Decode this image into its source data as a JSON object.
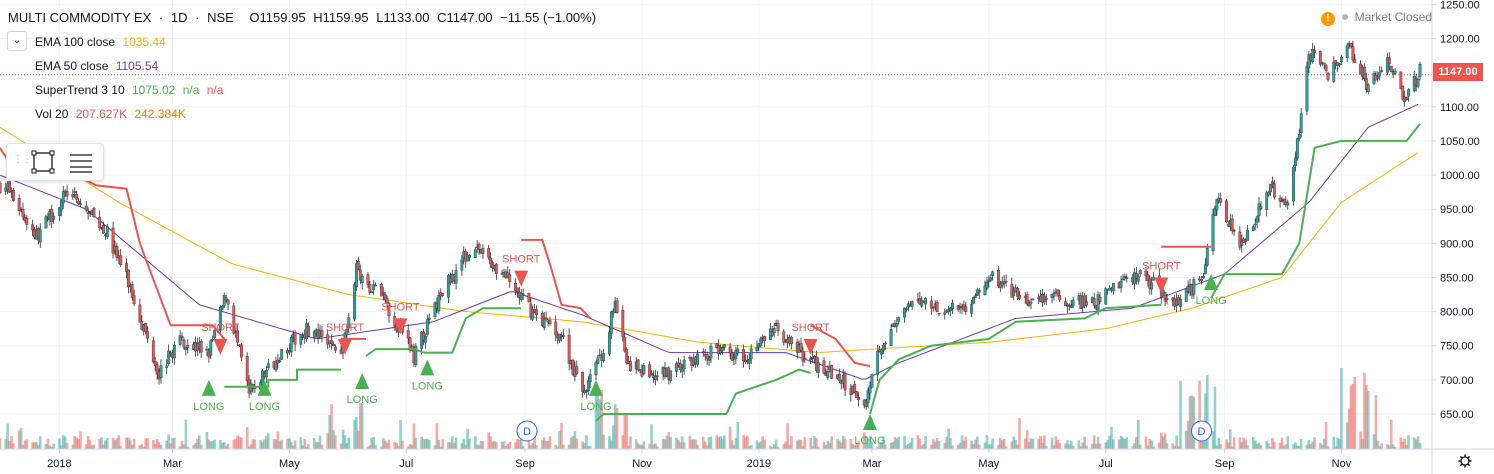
{
  "symbol": {
    "name": "MULTI COMMODITY EX",
    "interval": "1D",
    "exchange": "NSE",
    "open": "O1159.95",
    "high": "H1159.95",
    "low": "L1133.00",
    "close": "C1147.00",
    "change": "−11.55 (−1.00%)"
  },
  "indicators": [
    {
      "label": "EMA 100 close",
      "values": [
        "1035.44"
      ],
      "color": "#f4b400"
    },
    {
      "label": "EMA 50 close",
      "values": [
        "1105.54"
      ],
      "color": "#673ab7"
    },
    {
      "label": "SuperTrend 3 10",
      "values": [
        "1075.02",
        "n/a",
        "n/a"
      ],
      "colors": [
        "#4caf50",
        "#4caf50",
        "#ef5350"
      ]
    },
    {
      "label": "Vol 20",
      "values": [
        "207.627K",
        "242.384K"
      ],
      "colors": [
        "#ef5350",
        "#f57c00"
      ]
    }
  ],
  "status": {
    "warning_icon": "exclamation-icon",
    "market": "Market Closed"
  },
  "current_price": "1147.00",
  "colors": {
    "up": "#26a69a",
    "down": "#ef5350",
    "ema100": "#f4b400",
    "ema50": "#673ab7",
    "st_up": "#4caf50",
    "st_down": "#ef5350"
  },
  "chart_data": {
    "type": "candlestick",
    "price_axis": {
      "ticks": [
        "1250.00",
        "1200.00",
        "1150.00",
        "1100.00",
        "1050.00",
        "1000.00",
        "950.00",
        "900.00",
        "850.00",
        "800.00",
        "750.00",
        "700.00",
        "650.00"
      ],
      "range": [
        610,
        1255
      ]
    },
    "time_axis": {
      "ticks": [
        "2018",
        "Mar",
        "May",
        "Jul",
        "Sep",
        "Nov",
        "2019",
        "Mar",
        "May",
        "Jul",
        "Sep",
        "Nov"
      ]
    },
    "price_path": [
      [
        "2017-12-04",
        985
      ],
      [
        "2017-12-20",
        910
      ],
      [
        "2018-01-05",
        975
      ],
      [
        "2018-01-25",
        920
      ],
      [
        "2018-02-05",
        850
      ],
      [
        "2018-02-16",
        760
      ],
      [
        "2018-02-22",
        710
      ],
      [
        "2018-03-05",
        760
      ],
      [
        "2018-03-20",
        740
      ],
      [
        "2018-03-29",
        825
      ],
      [
        "2018-04-10",
        680
      ],
      [
        "2018-04-25",
        735
      ],
      [
        "2018-05-10",
        775
      ],
      [
        "2018-05-28",
        740
      ],
      [
        "2018-06-05",
        860
      ],
      [
        "2018-06-20",
        815
      ],
      [
        "2018-07-05",
        735
      ],
      [
        "2018-07-20",
        830
      ],
      [
        "2018-08-05",
        900
      ],
      [
        "2018-08-20",
        855
      ],
      [
        "2018-09-05",
        800
      ],
      [
        "2018-09-20",
        765
      ],
      [
        "2018-10-01",
        680
      ],
      [
        "2018-10-12",
        740
      ],
      [
        "2018-10-18",
        820
      ],
      [
        "2018-10-25",
        720
      ],
      [
        "2018-11-10",
        705
      ],
      [
        "2018-11-25",
        725
      ],
      [
        "2018-12-10",
        745
      ],
      [
        "2018-12-25",
        735
      ],
      [
        "2019-01-10",
        775
      ],
      [
        "2019-01-25",
        735
      ],
      [
        "2019-02-10",
        705
      ],
      [
        "2019-02-26",
        670
      ],
      [
        "2019-03-05",
        750
      ],
      [
        "2019-03-25",
        820
      ],
      [
        "2019-04-10",
        800
      ],
      [
        "2019-04-20",
        810
      ],
      [
        "2019-05-03",
        850
      ],
      [
        "2019-05-20",
        815
      ],
      [
        "2019-06-05",
        820
      ],
      [
        "2019-06-25",
        810
      ],
      [
        "2019-07-05",
        840
      ],
      [
        "2019-07-20",
        855
      ],
      [
        "2019-08-05",
        815
      ],
      [
        "2019-08-20",
        845
      ],
      [
        "2019-08-28",
        960
      ],
      [
        "2019-09-10",
        900
      ],
      [
        "2019-09-25",
        980
      ],
      [
        "2019-10-05",
        960
      ],
      [
        "2019-10-15",
        1180
      ],
      [
        "2019-10-25",
        1150
      ],
      [
        "2019-11-05",
        1190
      ],
      [
        "2019-11-15",
        1130
      ],
      [
        "2019-11-25",
        1170
      ],
      [
        "2019-12-05",
        1110
      ],
      [
        "2019-12-12",
        1155
      ]
    ],
    "ema100_path": [
      [
        "2017-12-01",
        1070
      ],
      [
        "2018-02-01",
        960
      ],
      [
        "2018-04-01",
        870
      ],
      [
        "2018-06-01",
        825
      ],
      [
        "2018-08-01",
        800
      ],
      [
        "2018-10-01",
        785
      ],
      [
        "2018-12-01",
        755
      ],
      [
        "2019-02-01",
        740
      ],
      [
        "2019-03-01",
        745
      ],
      [
        "2019-05-01",
        755
      ],
      [
        "2019-07-01",
        775
      ],
      [
        "2019-08-15",
        805
      ],
      [
        "2019-10-01",
        850
      ],
      [
        "2019-11-01",
        960
      ],
      [
        "2019-12-12",
        1035
      ]
    ],
    "ema50_path": [
      [
        "2017-12-01",
        1000
      ],
      [
        "2018-01-15",
        950
      ],
      [
        "2018-03-15",
        810
      ],
      [
        "2018-05-15",
        760
      ],
      [
        "2018-07-15",
        785
      ],
      [
        "2018-08-25",
        830
      ],
      [
        "2018-10-01",
        795
      ],
      [
        "2018-11-15",
        740
      ],
      [
        "2019-01-15",
        740
      ],
      [
        "2019-02-25",
        700
      ],
      [
        "2019-03-15",
        725
      ],
      [
        "2019-05-15",
        790
      ],
      [
        "2019-07-15",
        805
      ],
      [
        "2019-09-01",
        855
      ],
      [
        "2019-10-15",
        960
      ],
      [
        "2019-11-15",
        1070
      ],
      [
        "2019-12-12",
        1105
      ]
    ],
    "supertrend": [
      {
        "trend": "down",
        "points": [
          [
            "2017-12-01",
            1040
          ],
          [
            "2017-12-10",
            1000
          ],
          [
            "2018-01-10",
            1000
          ],
          [
            "2018-01-20",
            985
          ],
          [
            "2018-02-05",
            980
          ],
          [
            "2018-02-12",
            900
          ],
          [
            "2018-02-20",
            840
          ],
          [
            "2018-02-28",
            780
          ],
          [
            "2018-03-22",
            780
          ],
          [
            "2018-03-28",
            760
          ]
        ]
      },
      {
        "trend": "up",
        "points": [
          [
            "2018-03-28",
            690
          ],
          [
            "2018-04-20",
            690
          ],
          [
            "2018-04-20",
            700
          ],
          [
            "2018-05-05",
            700
          ],
          [
            "2018-05-05",
            715
          ],
          [
            "2018-05-28",
            715
          ]
        ]
      },
      {
        "trend": "down",
        "points": [
          [
            "2018-05-28",
            760
          ],
          [
            "2018-06-10",
            760
          ]
        ]
      },
      {
        "trend": "up",
        "points": [
          [
            "2018-06-10",
            735
          ],
          [
            "2018-06-15",
            745
          ],
          [
            "2018-07-05",
            745
          ],
          [
            "2018-07-10",
            740
          ]
        ]
      },
      {
        "trend": "up",
        "points": [
          [
            "2018-07-10",
            740
          ],
          [
            "2018-07-25",
            740
          ],
          [
            "2018-08-01",
            790
          ],
          [
            "2018-08-10",
            805
          ],
          [
            "2018-08-30",
            805
          ]
        ]
      },
      {
        "trend": "down",
        "points": [
          [
            "2018-08-30",
            905
          ],
          [
            "2018-09-10",
            905
          ],
          [
            "2018-09-15",
            860
          ],
          [
            "2018-09-20",
            810
          ],
          [
            "2018-09-30",
            805
          ],
          [
            "2018-10-05",
            790
          ]
        ]
      },
      {
        "trend": "up",
        "points": [
          [
            "2018-10-08",
            640
          ],
          [
            "2018-10-12",
            650
          ],
          [
            "2018-12-15",
            650
          ],
          [
            "2018-12-20",
            680
          ],
          [
            "2019-01-10",
            700
          ],
          [
            "2019-01-22",
            715
          ],
          [
            "2019-01-28",
            710
          ]
        ]
      },
      {
        "trend": "down",
        "points": [
          [
            "2019-01-28",
            780
          ],
          [
            "2019-02-10",
            760
          ],
          [
            "2019-02-20",
            725
          ],
          [
            "2019-02-28",
            720
          ]
        ]
      },
      {
        "trend": "up",
        "points": [
          [
            "2019-02-28",
            650
          ],
          [
            "2019-03-05",
            700
          ],
          [
            "2019-03-15",
            730
          ],
          [
            "2019-04-01",
            750
          ],
          [
            "2019-05-01",
            760
          ],
          [
            "2019-05-15",
            785
          ],
          [
            "2019-06-20",
            790
          ],
          [
            "2019-07-01",
            805
          ],
          [
            "2019-07-30",
            810
          ]
        ]
      },
      {
        "trend": "down",
        "points": [
          [
            "2019-07-30",
            895
          ],
          [
            "2019-08-25",
            895
          ]
        ]
      },
      {
        "trend": "up",
        "points": [
          [
            "2019-08-25",
            820
          ],
          [
            "2019-09-01",
            855
          ],
          [
            "2019-10-01",
            855
          ],
          [
            "2019-10-10",
            900
          ],
          [
            "2019-10-18",
            1040
          ],
          [
            "2019-11-01",
            1050
          ],
          [
            "2019-12-05",
            1050
          ],
          [
            "2019-12-12",
            1075
          ]
        ]
      }
    ],
    "signals": [
      {
        "type": "SHORT",
        "date": "2018-03-26",
        "price": 760
      },
      {
        "type": "LONG",
        "date": "2018-03-20",
        "price": 700
      },
      {
        "type": "LONG",
        "date": "2018-04-18",
        "price": 700
      },
      {
        "type": "SHORT",
        "date": "2018-05-30",
        "price": 760
      },
      {
        "type": "LONG",
        "date": "2018-06-08",
        "price": 710
      },
      {
        "type": "SHORT",
        "date": "2018-06-28",
        "price": 790
      },
      {
        "type": "LONG",
        "date": "2018-07-12",
        "price": 730
      },
      {
        "type": "SHORT",
        "date": "2018-08-30",
        "price": 860
      },
      {
        "type": "LONG",
        "date": "2018-10-08",
        "price": 700
      },
      {
        "type": "SHORT",
        "date": "2019-01-28",
        "price": 760
      },
      {
        "type": "LONG",
        "date": "2019-02-28",
        "price": 650
      },
      {
        "type": "SHORT",
        "date": "2019-07-30",
        "price": 850
      },
      {
        "type": "LONG",
        "date": "2019-08-25",
        "price": 855
      }
    ],
    "events": [
      {
        "label": "D",
        "date": "2018-09-02"
      },
      {
        "label": "D",
        "date": "2019-08-20"
      }
    ],
    "volume": {
      "note": "histogram at chart bottom",
      "spikes": [
        [
          "2018-06-01",
          6
        ],
        [
          "2018-10-15",
          7
        ],
        [
          "2019-08-18",
          10
        ],
        [
          "2019-11-10",
          10
        ]
      ]
    }
  }
}
